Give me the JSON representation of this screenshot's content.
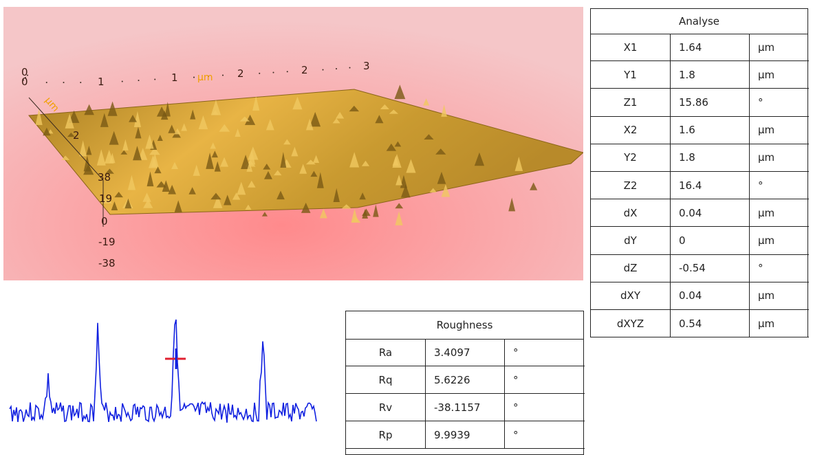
{
  "view3d": {
    "x_axis": [
      "0",
      "0",
      "1",
      "1",
      "2",
      "2",
      "3"
    ],
    "x_unit": "μm",
    "y_unit": "μm",
    "y_axis": [
      "2"
    ],
    "z_axis": [
      "38",
      "19",
      "0",
      "-19",
      "-38"
    ]
  },
  "analyse": {
    "title": "Analyse",
    "rows": [
      [
        "X1",
        "1.64",
        "μm"
      ],
      [
        "Y1",
        "1.8",
        "μm"
      ],
      [
        "Z1",
        "15.86",
        "°"
      ],
      [
        "X2",
        "1.6",
        "μm"
      ],
      [
        "Y2",
        "1.8",
        "μm"
      ],
      [
        "Z2",
        "16.4",
        "°"
      ],
      [
        "dX",
        "0.04",
        "μm"
      ],
      [
        "dY",
        "0",
        "μm"
      ],
      [
        "dZ",
        "-0.54",
        "°"
      ],
      [
        "dXY",
        "0.04",
        "μm"
      ],
      [
        "dXYZ",
        "0.54",
        "μm"
      ]
    ]
  },
  "roughness": {
    "title": "Roughness",
    "rows": [
      [
        "Ra",
        "3.4097",
        "°"
      ],
      [
        "Rq",
        "5.6226",
        "°"
      ],
      [
        "Rv",
        "-38.1157",
        "°"
      ],
      [
        "Rp",
        "9.9939",
        "°"
      ]
    ]
  }
}
